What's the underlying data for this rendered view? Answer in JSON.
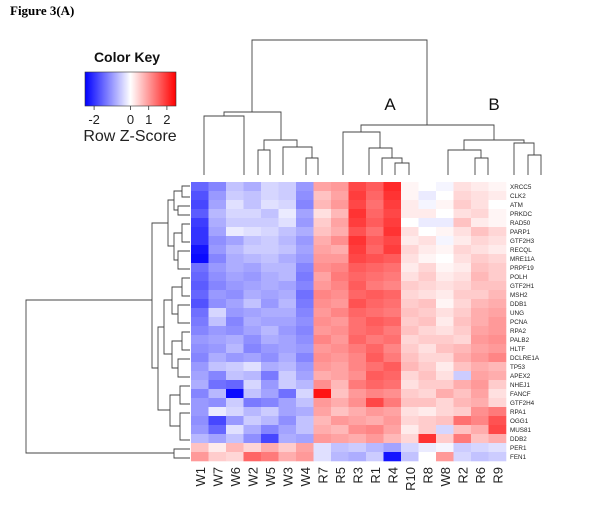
{
  "figure_label": "Figure 3(A)",
  "chart_data": {
    "type": "heatmap",
    "title": "Figure 3(A)",
    "color_key": {
      "title": "Color Key",
      "label": "Row Z-Score",
      "ticks": [
        "-2",
        "0",
        "1",
        "2"
      ],
      "range": [
        -2.5,
        2.5
      ],
      "low_color": "#0000ff",
      "mid_color": "#ffffff",
      "high_color": "#ff0000"
    },
    "cluster_labels": [
      "A",
      "B"
    ],
    "columns": [
      "W1",
      "W7",
      "W6",
      "W2",
      "W5",
      "W3",
      "W4",
      "R7",
      "R5",
      "R3",
      "R1",
      "R4",
      "R10",
      "R8",
      "W8",
      "R2",
      "R6",
      "R9"
    ],
    "rows": [
      "XRCC5",
      "CLK2",
      "ATM",
      "PRKDC",
      "RAD50",
      "PARP1",
      "GTF2H3",
      "RECQL",
      "MRE11A",
      "PRPF19",
      "POLH",
      "GTF2H1",
      "MSH2",
      "DDB1",
      "UNG",
      "PCNA",
      "RPA2",
      "PALB2",
      "HLTF",
      "DCLRE1A",
      "TP53",
      "APEX2",
      "NHEJ1",
      "FANCF",
      "GTF2H4",
      "RPA1",
      "OGG1",
      "MUS81",
      "DDB2",
      "PER1",
      "FEN1"
    ],
    "values": [
      [
        -1.5,
        -1.2,
        -0.6,
        -0.8,
        -0.4,
        -0.5,
        -1.0,
        0.9,
        1.0,
        1.8,
        1.6,
        2.1,
        0.1,
        0.0,
        -0.1,
        0.3,
        0.2,
        0.1
      ],
      [
        -1.7,
        -1.0,
        -0.5,
        -0.6,
        -0.4,
        -0.5,
        -1.1,
        0.6,
        0.9,
        1.9,
        1.5,
        2.0,
        0.1,
        -0.2,
        0.0,
        0.4,
        0.3,
        0.2
      ],
      [
        -1.8,
        -0.9,
        -0.3,
        -0.6,
        -0.3,
        -0.4,
        -1.2,
        0.7,
        1.0,
        1.8,
        1.4,
        1.9,
        0.2,
        -0.1,
        0.1,
        0.5,
        0.3,
        0.0
      ],
      [
        -1.6,
        -0.7,
        -0.4,
        -0.4,
        -0.6,
        -0.2,
        -0.9,
        0.3,
        0.7,
        2.0,
        1.5,
        1.8,
        0.2,
        0.2,
        0.0,
        0.3,
        0.4,
        0.1
      ],
      [
        -1.9,
        -0.8,
        -0.5,
        -0.5,
        -0.5,
        -0.3,
        -1.0,
        0.5,
        0.9,
        1.9,
        1.6,
        1.9,
        0.0,
        -0.2,
        -0.2,
        0.6,
        0.2,
        0.1
      ],
      [
        -2.0,
        -0.9,
        -0.2,
        -0.3,
        -0.4,
        -0.6,
        -0.8,
        0.6,
        0.8,
        1.7,
        1.4,
        2.0,
        0.3,
        0.0,
        0.1,
        0.3,
        0.6,
        0.4
      ],
      [
        -2.0,
        -1.1,
        -0.9,
        -0.6,
        -0.5,
        -0.7,
        -1.0,
        0.8,
        1.1,
        2.0,
        1.6,
        1.8,
        0.2,
        0.3,
        -0.1,
        0.2,
        0.4,
        0.3
      ],
      [
        -2.3,
        -1.0,
        -0.7,
        -0.5,
        -0.5,
        -0.6,
        -0.9,
        0.9,
        0.8,
        1.9,
        1.5,
        1.9,
        0.4,
        0.2,
        0.1,
        0.4,
        0.3,
        0.2
      ],
      [
        -2.4,
        -1.2,
        -0.8,
        -0.7,
        -0.6,
        -0.8,
        -1.0,
        1.0,
        1.0,
        1.8,
        1.7,
        1.6,
        0.3,
        0.1,
        0.0,
        0.3,
        0.5,
        0.4
      ],
      [
        -1.4,
        -1.0,
        -0.8,
        -0.9,
        -0.7,
        -0.7,
        -1.2,
        1.1,
        1.2,
        1.6,
        1.5,
        1.4,
        0.2,
        0.4,
        0.1,
        0.2,
        0.6,
        0.5
      ],
      [
        -1.5,
        -1.1,
        -0.9,
        -1.0,
        -0.8,
        -0.7,
        -1.3,
        0.9,
        1.3,
        1.5,
        1.4,
        1.3,
        0.3,
        0.5,
        0.2,
        0.3,
        0.7,
        0.5
      ],
      [
        -1.6,
        -1.2,
        -1.0,
        -0.9,
        -0.8,
        -0.9,
        -1.2,
        1.0,
        1.2,
        1.6,
        1.3,
        1.2,
        0.5,
        0.4,
        0.3,
        0.4,
        0.6,
        0.6
      ],
      [
        -1.5,
        -1.0,
        -1.1,
        -0.8,
        -0.9,
        -0.8,
        -1.4,
        1.2,
        1.1,
        1.5,
        1.6,
        1.5,
        0.4,
        0.3,
        0.2,
        0.5,
        0.5,
        0.7
      ],
      [
        -1.7,
        -1.1,
        -0.9,
        -0.6,
        -1.0,
        -0.7,
        -1.3,
        1.1,
        1.0,
        1.7,
        1.5,
        1.4,
        0.5,
        0.6,
        0.1,
        0.4,
        0.7,
        0.8
      ],
      [
        -1.4,
        -0.4,
        -1.0,
        -0.9,
        -0.8,
        -0.8,
        -1.2,
        1.0,
        1.2,
        1.5,
        1.4,
        1.3,
        0.6,
        0.5,
        0.3,
        0.5,
        0.8,
        0.9
      ],
      [
        -1.3,
        -0.6,
        -1.2,
        -0.8,
        -0.9,
        -0.9,
        -1.1,
        1.1,
        1.0,
        1.4,
        1.6,
        1.5,
        0.5,
        0.6,
        0.2,
        0.6,
        0.8,
        1.0
      ],
      [
        -1.2,
        -1.0,
        -1.1,
        -0.9,
        -0.7,
        -1.0,
        -1.2,
        1.0,
        1.1,
        1.4,
        1.5,
        1.3,
        0.6,
        0.4,
        0.3,
        0.5,
        0.9,
        1.0
      ],
      [
        -1.0,
        -0.9,
        -0.8,
        -1.1,
        -0.8,
        -0.9,
        -1.1,
        1.2,
        1.0,
        1.5,
        1.3,
        1.4,
        0.4,
        0.5,
        0.5,
        0.4,
        1.0,
        1.1
      ],
      [
        -1.1,
        -1.0,
        -0.7,
        -1.2,
        -1.0,
        -0.9,
        -1.0,
        1.0,
        1.1,
        1.3,
        1.5,
        1.2,
        0.5,
        0.3,
        0.6,
        0.7,
        0.9,
        1.0
      ],
      [
        -1.2,
        -0.8,
        -1.0,
        -0.9,
        -1.1,
        -0.8,
        -1.2,
        1.1,
        1.0,
        1.2,
        1.6,
        1.3,
        0.6,
        0.4,
        0.4,
        0.8,
        1.0,
        1.2
      ],
      [
        -1.0,
        -0.6,
        -0.5,
        -0.3,
        -0.8,
        -0.7,
        -1.0,
        1.0,
        0.9,
        1.2,
        1.4,
        1.6,
        0.7,
        0.5,
        0.2,
        0.6,
        0.8,
        0.7
      ],
      [
        -0.9,
        -1.2,
        -0.6,
        -0.7,
        -1.3,
        -0.5,
        -0.9,
        0.8,
        0.9,
        1.1,
        1.6,
        1.5,
        0.4,
        0.6,
        0.3,
        -0.5,
        0.9,
        0.8
      ],
      [
        -0.8,
        -1.4,
        -1.5,
        -0.4,
        -1.0,
        -0.5,
        -0.7,
        1.1,
        0.7,
        1.3,
        1.5,
        1.4,
        0.3,
        0.5,
        0.5,
        0.8,
        1.0,
        0.5
      ],
      [
        -1.2,
        -0.7,
        -2.4,
        -0.6,
        -0.9,
        -1.4,
        -0.4,
        2.3,
        0.6,
        1.0,
        1.2,
        1.1,
        0.5,
        0.4,
        0.8,
        0.6,
        0.9,
        0.3
      ],
      [
        -1.0,
        -1.1,
        -0.5,
        -1.3,
        -1.2,
        -0.9,
        -0.6,
        1.0,
        0.8,
        1.1,
        1.8,
        1.3,
        0.6,
        0.6,
        0.4,
        0.7,
        0.8,
        0.4
      ],
      [
        -1.0,
        -0.2,
        -0.4,
        -0.7,
        -0.5,
        -0.9,
        -0.8,
        0.9,
        0.6,
        0.8,
        1.0,
        0.9,
        0.3,
        0.2,
        0.4,
        0.5,
        1.1,
        1.3
      ],
      [
        -1.1,
        -1.8,
        -1.0,
        -0.5,
        -0.7,
        -1.1,
        -0.6,
        0.7,
        1.0,
        0.9,
        0.8,
        1.0,
        0.4,
        0.5,
        0.6,
        1.4,
        1.2,
        1.7
      ],
      [
        -1.0,
        -1.5,
        -0.3,
        -0.8,
        -1.2,
        -0.9,
        -0.6,
        0.8,
        0.7,
        1.1,
        1.2,
        0.9,
        0.2,
        0.5,
        -0.4,
        0.6,
        0.8,
        1.8
      ],
      [
        -0.7,
        -0.9,
        -0.6,
        -1.1,
        -1.8,
        -0.8,
        -0.9,
        1.0,
        0.9,
        0.8,
        1.0,
        0.7,
        0.4,
        2.0,
        0.5,
        1.3,
        0.6,
        0.8
      ],
      [
        0.6,
        0.2,
        0.7,
        0.4,
        0.8,
        0.5,
        0.9,
        -0.3,
        -0.6,
        -0.5,
        -0.7,
        -0.9,
        -0.4,
        -0.2,
        -0.1,
        -0.5,
        -0.4,
        -0.3
      ],
      [
        1.0,
        0.5,
        0.4,
        1.5,
        1.3,
        0.8,
        1.0,
        -0.3,
        -0.7,
        -0.8,
        -0.5,
        -2.3,
        -0.6,
        0.0,
        1.0,
        -0.4,
        -0.6,
        -0.5
      ]
    ]
  }
}
